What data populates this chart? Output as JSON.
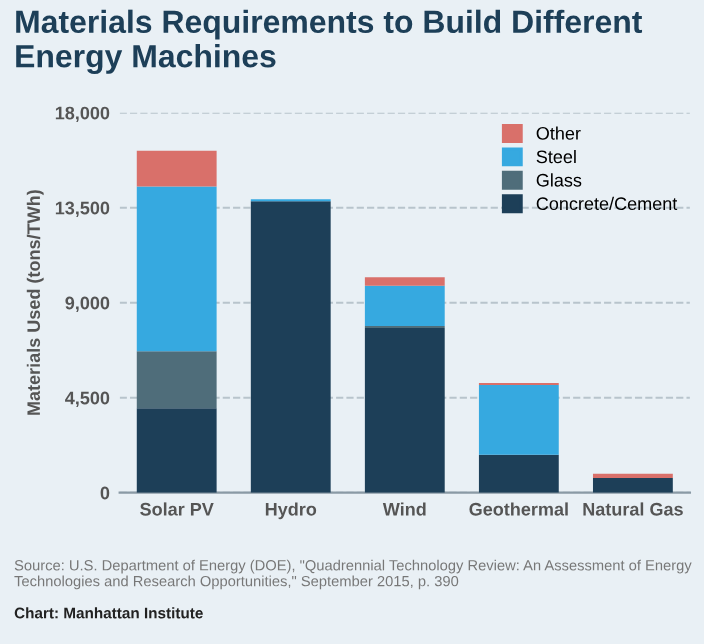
{
  "chart_data": {
    "type": "bar",
    "title": "Materials Requirements to Build Different Energy Machines",
    "ylabel": "Materials Used (tons/TWh)",
    "categories": [
      "Solar PV",
      "Hydro",
      "Wind",
      "Geothermal",
      "Natural Gas"
    ],
    "stacked": true,
    "series": [
      {
        "name": "Concrete/Cement",
        "color": "#1d3f58",
        "values": [
          4000,
          13800,
          7800,
          1800,
          700
        ]
      },
      {
        "name": "Glass",
        "color": "#4f6d7a",
        "values": [
          2700,
          0,
          100,
          0,
          0
        ]
      },
      {
        "name": "Steel",
        "color": "#36a9e0",
        "values": [
          7800,
          100,
          1900,
          3300,
          0
        ]
      },
      {
        "name": "Other",
        "color": "#d9706a",
        "values": [
          1700,
          0,
          400,
          100,
          200
        ]
      }
    ],
    "ylim": [
      0,
      18000
    ],
    "yticks": [
      {
        "value": 0,
        "label": "0"
      },
      {
        "value": 4500,
        "label": "4,500"
      },
      {
        "value": 9000,
        "label": "9,000"
      },
      {
        "value": 13500,
        "label": "13,500"
      },
      {
        "value": 18000,
        "label": "18,000"
      }
    ],
    "grid": "y",
    "legend": "top right",
    "annotations": [
      "Source: U.S. Department of Energy (DOE), \"Quadrennial Technology Review: An Assessment of Energy Technologies and Research Opportunities,\" September 2015, p. 390",
      "Chart: Manhattan Institute"
    ]
  }
}
